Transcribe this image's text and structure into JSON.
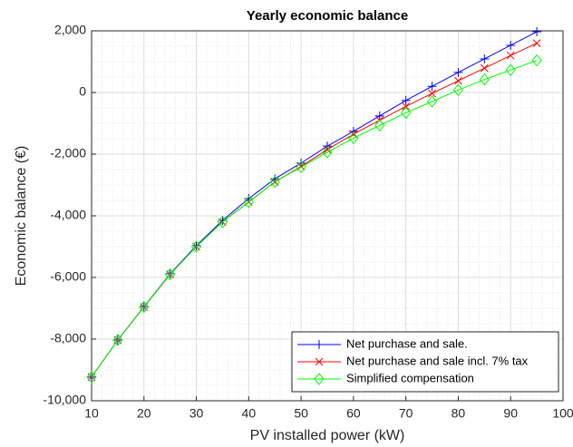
{
  "chart_data": {
    "type": "line",
    "title": "Yearly economic balance",
    "x_label": "PV installed power (kW)",
    "y_label": "Economic balance (€)",
    "x": [
      10,
      15,
      20,
      25,
      30,
      35,
      40,
      45,
      50,
      55,
      60,
      65,
      70,
      75,
      80,
      85,
      90,
      95
    ],
    "series": [
      {
        "name": "Net purchase and sale.",
        "color": "#0000ff",
        "marker": "plus",
        "values": [
          -9230,
          -8030,
          -6950,
          -5880,
          -4970,
          -4150,
          -3440,
          -2800,
          -2290,
          -1740,
          -1260,
          -760,
          -260,
          200,
          650,
          1090,
          1530,
          1970
        ]
      },
      {
        "name": "Net purchase and sale incl. 7% tax",
        "color": "#ff0000",
        "marker": "cross",
        "values": [
          -9230,
          -8030,
          -6960,
          -5900,
          -5000,
          -4200,
          -3550,
          -2900,
          -2400,
          -1850,
          -1350,
          -900,
          -450,
          -30,
          380,
          790,
          1200,
          1600
        ]
      },
      {
        "name": "Simplified compensation",
        "color": "#00ff00",
        "marker": "diamond",
        "values": [
          -9230,
          -8030,
          -6960,
          -5900,
          -5000,
          -4200,
          -3550,
          -2900,
          -2420,
          -1940,
          -1480,
          -1070,
          -660,
          -290,
          80,
          420,
          730,
          1040
        ]
      }
    ],
    "xlim": [
      10,
      100
    ],
    "xticks": [
      10,
      20,
      30,
      40,
      50,
      60,
      70,
      80,
      90,
      100
    ],
    "ylim": [
      -10000,
      2000
    ],
    "yticks": [
      {
        "value": -10000,
        "label": "-10,000"
      },
      {
        "value": -8000,
        "label": "-8,000"
      },
      {
        "value": -6000,
        "label": "-6,000"
      },
      {
        "value": -4000,
        "label": "-4,000"
      },
      {
        "value": -2000,
        "label": "-2,000"
      },
      0,
      {
        "value": 2000,
        "label": "2,000"
      }
    ],
    "grid": true,
    "minor_grid": true,
    "legend_position": "lower right"
  }
}
